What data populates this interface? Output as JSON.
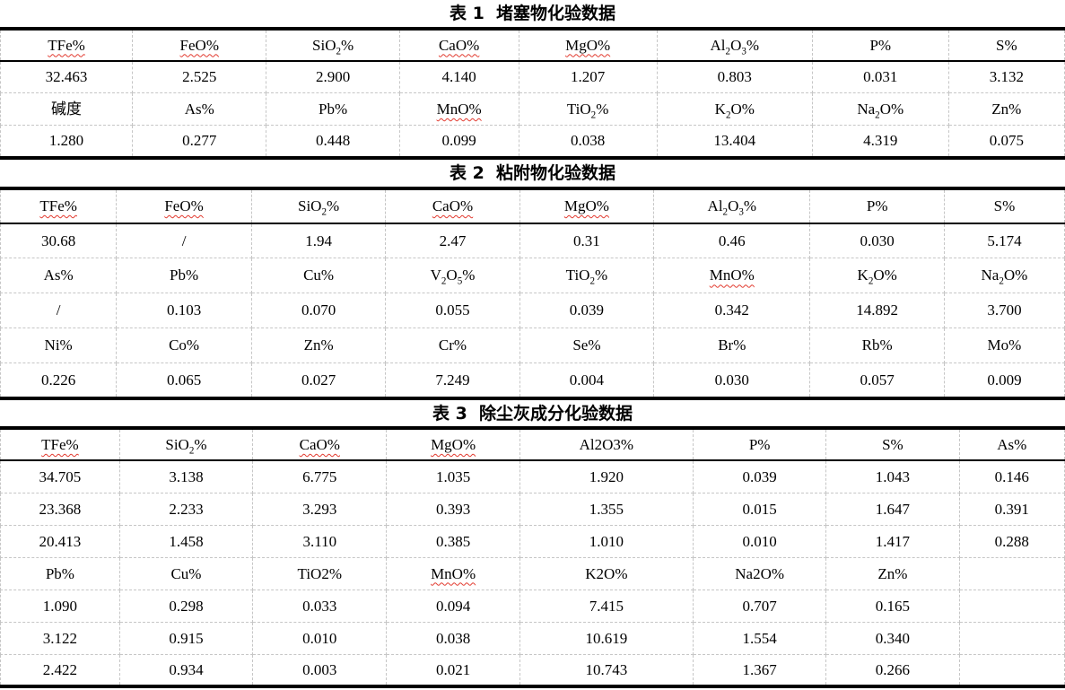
{
  "colors": {
    "background": "#ffffff",
    "text": "#000000",
    "thick_rule": "#000000",
    "gridline": "#c6c6c6",
    "spellcheck_underline": "#e23a2f"
  },
  "tables": [
    {
      "title": "表 1  堵塞物化验数据",
      "col_widths_pct": [
        12.4,
        12.6,
        12.5,
        11.2,
        13.0,
        14.6,
        12.8,
        10.9
      ],
      "rows": [
        {
          "type": "header",
          "cells": [
            "TFe%",
            "FeO%",
            "SiO₂%",
            "CaO%",
            "MgO%",
            "Al₂O₃%",
            "P%",
            "S%"
          ],
          "misspelled": [
            0,
            1,
            3,
            4
          ]
        },
        {
          "type": "values",
          "cells": [
            "32.463",
            "2.525",
            "2.900",
            "4.140",
            "1.207",
            "0.803",
            "0.031",
            "3.132"
          ],
          "misspelled": []
        },
        {
          "type": "header",
          "cells": [
            "碱度",
            "As%",
            "Pb%",
            "MnO%",
            "TiO₂%",
            "K₂O%",
            "Na₂O%",
            "Zn%"
          ],
          "misspelled": [
            3
          ]
        },
        {
          "type": "values",
          "cells": [
            "1.280",
            "0.277",
            "0.448",
            "0.099",
            "0.038",
            "13.404",
            "4.319",
            "0.075"
          ],
          "misspelled": []
        }
      ]
    },
    {
      "title": "表 2  粘附物化验数据",
      "col_widths_pct": [
        10.9,
        12.7,
        12.6,
        12.6,
        12.6,
        14.7,
        12.6,
        11.3
      ],
      "rows": [
        {
          "type": "header",
          "cells": [
            "TFe%",
            "FeO%",
            "SiO₂%",
            "CaO%",
            "MgO%",
            "Al₂O₃%",
            "P%",
            "S%"
          ],
          "misspelled": [
            0,
            1,
            3,
            4
          ]
        },
        {
          "type": "values",
          "cells": [
            "30.68",
            "/",
            "1.94",
            "2.47",
            "0.31",
            "0.46",
            "0.030",
            "5.174"
          ],
          "misspelled": []
        },
        {
          "type": "header",
          "cells": [
            "As%",
            "Pb%",
            "Cu%",
            "V₂O₅%",
            "TiO₂%",
            "MnO%",
            "K₂O%",
            "Na₂O%"
          ],
          "misspelled": [
            5
          ]
        },
        {
          "type": "values",
          "cells": [
            "/",
            "0.103",
            "0.070",
            "0.055",
            "0.039",
            "0.342",
            "14.892",
            "3.700"
          ],
          "misspelled": []
        },
        {
          "type": "header",
          "cells": [
            "Ni%",
            "Co%",
            "Zn%",
            "Cr%",
            "Se%",
            "Br%",
            "Rb%",
            "Mo%"
          ],
          "misspelled": []
        },
        {
          "type": "values",
          "cells": [
            "0.226",
            "0.065",
            "0.027",
            "7.249",
            "0.004",
            "0.030",
            "0.057",
            "0.009"
          ],
          "misspelled": []
        }
      ]
    },
    {
      "title": "表 3  除尘灰成分化验数据",
      "col_widths_pct": [
        11.2,
        12.5,
        12.6,
        12.5,
        16.3,
        12.5,
        12.5,
        9.9
      ],
      "rows": [
        {
          "type": "header",
          "cells": [
            "TFe%",
            "SiO₂%",
            "CaO%",
            "MgO%",
            "Al2O3%",
            "P%",
            "S%",
            "As%"
          ],
          "misspelled": [
            0,
            2,
            3
          ]
        },
        {
          "type": "values",
          "cells": [
            "34.705",
            "3.138",
            "6.775",
            "1.035",
            "1.920",
            "0.039",
            "1.043",
            "0.146"
          ],
          "misspelled": []
        },
        {
          "type": "values",
          "cells": [
            "23.368",
            "2.233",
            "3.293",
            "0.393",
            "1.355",
            "0.015",
            "1.647",
            "0.391"
          ],
          "misspelled": []
        },
        {
          "type": "values",
          "cells": [
            "20.413",
            "1.458",
            "3.110",
            "0.385",
            "1.010",
            "0.010",
            "1.417",
            "0.288"
          ],
          "misspelled": []
        },
        {
          "type": "header",
          "cells": [
            "Pb%",
            "Cu%",
            "TiO2%",
            "MnO%",
            "K2O%",
            "Na2O%",
            "Zn%",
            ""
          ],
          "misspelled": [
            3
          ]
        },
        {
          "type": "values",
          "cells": [
            "1.090",
            "0.298",
            "0.033",
            "0.094",
            "7.415",
            "0.707",
            "0.165",
            ""
          ],
          "misspelled": []
        },
        {
          "type": "values",
          "cells": [
            "3.122",
            "0.915",
            "0.010",
            "0.038",
            "10.619",
            "1.554",
            "0.340",
            ""
          ],
          "misspelled": []
        },
        {
          "type": "values",
          "cells": [
            "2.422",
            "0.934",
            "0.003",
            "0.021",
            "10.743",
            "1.367",
            "0.266",
            ""
          ],
          "misspelled": []
        }
      ]
    }
  ]
}
